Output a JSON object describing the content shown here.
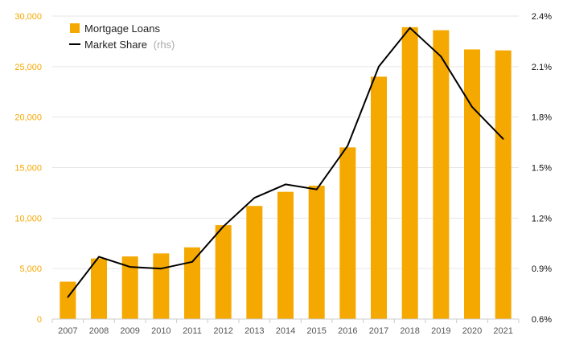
{
  "chart_data": {
    "type": "bar",
    "categories": [
      "2007",
      "2008",
      "2009",
      "2010",
      "2011",
      "2012",
      "2013",
      "2014",
      "2015",
      "2016",
      "2017",
      "2018",
      "2019",
      "2020",
      "2021"
    ],
    "series": [
      {
        "name": "Mortgage Loans",
        "type": "bar",
        "axis": "left",
        "color": "#F5A800",
        "values": [
          3700,
          6000,
          6200,
          6500,
          7100,
          9300,
          11200,
          12600,
          13200,
          17000,
          24000,
          28900,
          28600,
          26700,
          26600
        ]
      },
      {
        "name": "Market Share",
        "type": "line",
        "axis": "right",
        "color": "#000000",
        "values": [
          0.73,
          0.97,
          0.91,
          0.9,
          0.94,
          1.15,
          1.32,
          1.4,
          1.37,
          1.63,
          2.1,
          2.33,
          2.16,
          1.86,
          1.67
        ]
      }
    ],
    "y_left": {
      "min": 0,
      "max": 30000,
      "ticks": [
        0,
        5000,
        10000,
        15000,
        20000,
        25000,
        30000
      ],
      "tick_labels": [
        "0",
        "5,000",
        "10,000",
        "15,000",
        "20,000",
        "25,000",
        "30,000"
      ]
    },
    "y_right": {
      "min": 0.6,
      "max": 2.4,
      "ticks": [
        0.6,
        0.9,
        1.2,
        1.5,
        1.8,
        2.1,
        2.4
      ],
      "tick_labels": [
        "0.6%",
        "0.9%",
        "1.2%",
        "1.5%",
        "1.8%",
        "2.1%",
        "2.4%"
      ]
    },
    "legend": {
      "position": "top-left",
      "items": [
        {
          "label": "Mortgage Loans",
          "suffix": ""
        },
        {
          "label": "Market Share",
          "suffix": "(rhs)"
        }
      ]
    },
    "grid": true
  }
}
